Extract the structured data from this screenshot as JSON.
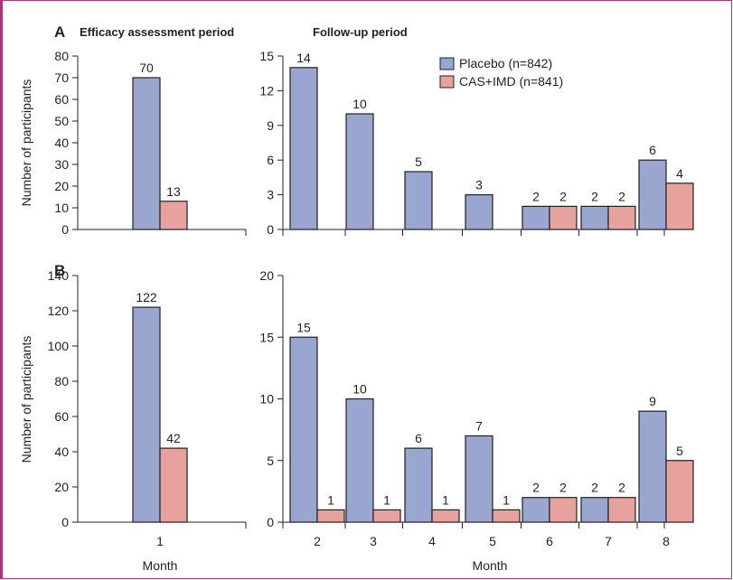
{
  "colors": {
    "placebo": "#98a6d0",
    "treatment": "#e8a29d",
    "stroke": "#231f20",
    "frame": "#b0327a"
  },
  "section_titles": {
    "efficacy": "Efficacy assessment period",
    "followup": "Follow-up period"
  },
  "legend": {
    "placebo": "Placebo (n=842)",
    "treatment": "CAS+IMD (n=841)"
  },
  "chart_data": [
    {
      "panel": "A",
      "subplot": "efficacy",
      "type": "bar",
      "ylabel": "Number of participants",
      "xlabel": "",
      "ylim": [
        0,
        80
      ],
      "yticks": [
        0,
        10,
        20,
        30,
        40,
        50,
        60,
        70,
        80
      ],
      "categories": [
        "1"
      ],
      "show_category_labels": false,
      "series": [
        {
          "name": "Placebo (n=842)",
          "values": [
            70
          ]
        },
        {
          "name": "CAS+IMD (n=841)",
          "values": [
            13
          ]
        }
      ]
    },
    {
      "panel": "A",
      "subplot": "followup",
      "type": "bar",
      "ylabel": "",
      "xlabel": "",
      "ylim": [
        0,
        15
      ],
      "yticks": [
        0,
        3,
        6,
        9,
        12,
        15
      ],
      "categories": [
        "2",
        "3",
        "4",
        "5",
        "6",
        "7",
        "8"
      ],
      "show_category_labels": false,
      "series": [
        {
          "name": "Placebo (n=842)",
          "values": [
            14,
            10,
            5,
            3,
            2,
            2,
            6
          ]
        },
        {
          "name": "CAS+IMD (n=841)",
          "values": [
            0,
            0,
            0,
            0,
            2,
            2,
            4
          ]
        }
      ],
      "legend": "top-right"
    },
    {
      "panel": "B",
      "subplot": "efficacy",
      "type": "bar",
      "ylabel": "Number of participants",
      "xlabel": "Month",
      "ylim": [
        0,
        140
      ],
      "yticks": [
        0,
        20,
        40,
        60,
        80,
        100,
        120,
        140
      ],
      "categories": [
        "1"
      ],
      "show_category_labels": true,
      "series": [
        {
          "name": "Placebo (n=842)",
          "values": [
            122
          ]
        },
        {
          "name": "CAS+IMD (n=841)",
          "values": [
            42
          ]
        }
      ]
    },
    {
      "panel": "B",
      "subplot": "followup",
      "type": "bar",
      "ylabel": "",
      "xlabel": "Month",
      "ylim": [
        0,
        20
      ],
      "yticks": [
        0,
        5,
        10,
        15,
        20
      ],
      "categories": [
        "2",
        "3",
        "4",
        "5",
        "6",
        "7",
        "8"
      ],
      "show_category_labels": true,
      "series": [
        {
          "name": "Placebo (n=842)",
          "values": [
            15,
            10,
            6,
            7,
            2,
            2,
            9
          ]
        },
        {
          "name": "CAS+IMD (n=841)",
          "values": [
            1,
            1,
            1,
            1,
            2,
            2,
            5
          ]
        }
      ]
    }
  ]
}
